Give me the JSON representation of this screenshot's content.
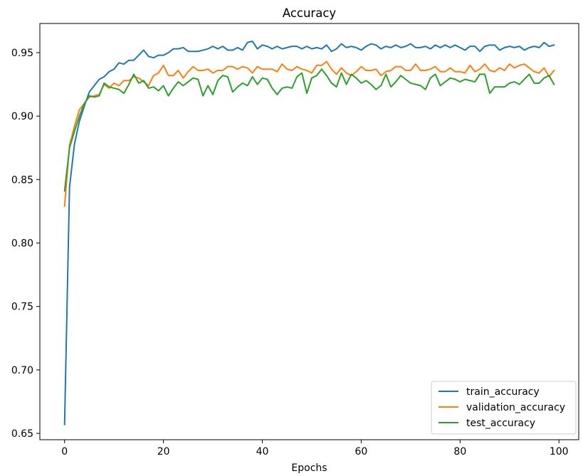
{
  "chart_data": {
    "type": "line",
    "title": "Accuracy",
    "xlabel": "Epochs",
    "ylabel": "",
    "xlim": [
      -5,
      104
    ],
    "ylim": [
      0.645,
      0.973
    ],
    "xticks": [
      0,
      20,
      40,
      60,
      80,
      100
    ],
    "yticks": [
      0.65,
      0.7,
      0.75,
      0.8,
      0.85,
      0.9,
      0.95
    ],
    "grid": false,
    "legend_position": "lower-right",
    "x": [
      0,
      1,
      2,
      3,
      4,
      5,
      6,
      7,
      8,
      9,
      10,
      11,
      12,
      13,
      14,
      15,
      16,
      17,
      18,
      19,
      20,
      21,
      22,
      23,
      24,
      25,
      26,
      27,
      28,
      29,
      30,
      31,
      32,
      33,
      34,
      35,
      36,
      37,
      38,
      39,
      40,
      41,
      42,
      43,
      44,
      45,
      46,
      47,
      48,
      49,
      50,
      51,
      52,
      53,
      54,
      55,
      56,
      57,
      58,
      59,
      60,
      61,
      62,
      63,
      64,
      65,
      66,
      67,
      68,
      69,
      70,
      71,
      72,
      73,
      74,
      75,
      76,
      77,
      78,
      79,
      80,
      81,
      82,
      83,
      84,
      85,
      86,
      87,
      88,
      89,
      90,
      91,
      92,
      93,
      94,
      95,
      96,
      97,
      98,
      99
    ],
    "series": [
      {
        "name": "train_accuracy",
        "color": "#1f77b4",
        "values": [
          0.657,
          0.844,
          0.878,
          0.896,
          0.908,
          0.919,
          0.924,
          0.929,
          0.931,
          0.935,
          0.937,
          0.942,
          0.941,
          0.944,
          0.944,
          0.948,
          0.952,
          0.947,
          0.946,
          0.948,
          0.948,
          0.95,
          0.953,
          0.953,
          0.954,
          0.951,
          0.951,
          0.951,
          0.952,
          0.953,
          0.955,
          0.953,
          0.955,
          0.952,
          0.952,
          0.954,
          0.952,
          0.958,
          0.959,
          0.953,
          0.956,
          0.955,
          0.953,
          0.955,
          0.953,
          0.954,
          0.955,
          0.955,
          0.953,
          0.955,
          0.953,
          0.954,
          0.953,
          0.956,
          0.951,
          0.953,
          0.957,
          0.954,
          0.955,
          0.954,
          0.952,
          0.955,
          0.957,
          0.956,
          0.953,
          0.955,
          0.954,
          0.956,
          0.954,
          0.955,
          0.957,
          0.954,
          0.954,
          0.955,
          0.953,
          0.956,
          0.954,
          0.956,
          0.954,
          0.956,
          0.954,
          0.952,
          0.955,
          0.955,
          0.951,
          0.955,
          0.956,
          0.956,
          0.952,
          0.954,
          0.955,
          0.954,
          0.955,
          0.952,
          0.954,
          0.955,
          0.954,
          0.958,
          0.955,
          0.956
        ]
      },
      {
        "name": "validation_accuracy",
        "color": "#ff7f0e",
        "values": [
          0.829,
          0.877,
          0.892,
          0.905,
          0.91,
          0.915,
          0.916,
          0.917,
          0.925,
          0.922,
          0.926,
          0.924,
          0.928,
          0.928,
          0.931,
          0.93,
          0.927,
          0.924,
          0.932,
          0.934,
          0.94,
          0.932,
          0.932,
          0.936,
          0.93,
          0.935,
          0.939,
          0.936,
          0.936,
          0.937,
          0.934,
          0.936,
          0.936,
          0.939,
          0.939,
          0.937,
          0.939,
          0.938,
          0.934,
          0.939,
          0.937,
          0.937,
          0.937,
          0.935,
          0.941,
          0.937,
          0.936,
          0.939,
          0.937,
          0.936,
          0.934,
          0.94,
          0.94,
          0.943,
          0.937,
          0.933,
          0.938,
          0.934,
          0.932,
          0.935,
          0.939,
          0.936,
          0.936,
          0.937,
          0.932,
          0.935,
          0.936,
          0.939,
          0.939,
          0.936,
          0.936,
          0.941,
          0.936,
          0.936,
          0.937,
          0.939,
          0.935,
          0.935,
          0.938,
          0.935,
          0.935,
          0.934,
          0.94,
          0.935,
          0.937,
          0.941,
          0.936,
          0.935,
          0.938,
          0.936,
          0.941,
          0.938,
          0.94,
          0.941,
          0.938,
          0.935,
          0.934,
          0.938,
          0.931,
          0.936
        ]
      },
      {
        "name": "test_accuracy",
        "color": "#2ca02c",
        "values": [
          0.841,
          0.875,
          0.888,
          0.9,
          0.91,
          0.916,
          0.915,
          0.916,
          0.926,
          0.923,
          0.922,
          0.921,
          0.918,
          0.925,
          0.933,
          0.926,
          0.928,
          0.922,
          0.923,
          0.92,
          0.924,
          0.916,
          0.922,
          0.927,
          0.924,
          0.927,
          0.93,
          0.929,
          0.916,
          0.924,
          0.917,
          0.928,
          0.932,
          0.931,
          0.919,
          0.923,
          0.926,
          0.924,
          0.931,
          0.925,
          0.93,
          0.929,
          0.922,
          0.917,
          0.922,
          0.923,
          0.922,
          0.931,
          0.934,
          0.918,
          0.93,
          0.932,
          0.937,
          0.932,
          0.926,
          0.923,
          0.934,
          0.925,
          0.933,
          0.93,
          0.926,
          0.928,
          0.925,
          0.921,
          0.924,
          0.933,
          0.923,
          0.927,
          0.932,
          0.929,
          0.926,
          0.925,
          0.924,
          0.921,
          0.93,
          0.933,
          0.924,
          0.927,
          0.93,
          0.929,
          0.927,
          0.929,
          0.928,
          0.927,
          0.933,
          0.933,
          0.918,
          0.923,
          0.923,
          0.923,
          0.926,
          0.927,
          0.925,
          0.929,
          0.933,
          0.926,
          0.926,
          0.93,
          0.932,
          0.925
        ]
      }
    ]
  }
}
